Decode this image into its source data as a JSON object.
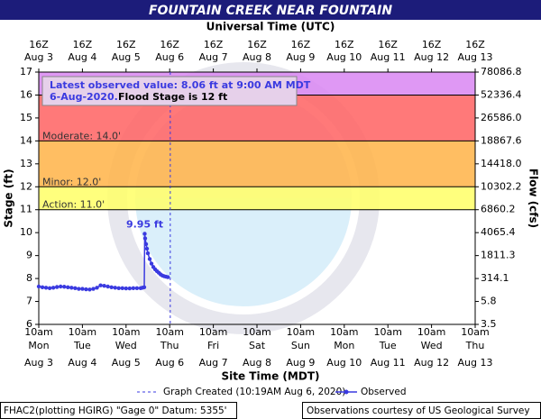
{
  "chart_data": {
    "type": "line",
    "title": "FOUNTAIN CREEK NEAR FOUNTAIN",
    "top_axis_label": "Universal Time (UTC)",
    "x_label": "Site Time (MDT)",
    "y_label": "Stage (ft)",
    "y2_label": "Flow (cfs)",
    "xlim": [
      "2020-08-03 10:00",
      "2020-08-13 10:00"
    ],
    "xticks": [
      {
        "value": "2020-08-03 10:00",
        "utc": "16Z",
        "time": "10am",
        "day": "Mon",
        "date": "Aug 3"
      },
      {
        "value": "2020-08-04 10:00",
        "utc": "16Z",
        "time": "10am",
        "day": "Tue",
        "date": "Aug 4"
      },
      {
        "value": "2020-08-05 10:00",
        "utc": "16Z",
        "time": "10am",
        "day": "Wed",
        "date": "Aug 5"
      },
      {
        "value": "2020-08-06 10:00",
        "utc": "16Z",
        "time": "10am",
        "day": "Thu",
        "date": "Aug 6"
      },
      {
        "value": "2020-08-07 10:00",
        "utc": "16Z",
        "time": "10am",
        "day": "Fri",
        "date": "Aug 7"
      },
      {
        "value": "2020-08-08 10:00",
        "utc": "16Z",
        "time": "10am",
        "day": "Sat",
        "date": "Aug 8"
      },
      {
        "value": "2020-08-09 10:00",
        "utc": "16Z",
        "time": "10am",
        "day": "Sun",
        "date": "Aug 9"
      },
      {
        "value": "2020-08-10 10:00",
        "utc": "16Z",
        "time": "10am",
        "day": "Mon",
        "date": "Aug 10"
      },
      {
        "value": "2020-08-11 10:00",
        "utc": "16Z",
        "time": "10am",
        "day": "Tue",
        "date": "Aug 11"
      },
      {
        "value": "2020-08-12 10:00",
        "utc": "16Z",
        "time": "10am",
        "day": "Wed",
        "date": "Aug 12"
      },
      {
        "value": "2020-08-13 10:00",
        "utc": "16Z",
        "time": "10am",
        "day": "Thu",
        "date": "Aug 13"
      }
    ],
    "ylim": [
      6,
      17
    ],
    "yticks": [
      6,
      7,
      8,
      9,
      10,
      11,
      12,
      13,
      14,
      15,
      16,
      17
    ],
    "y2_tick_labels": [
      "3.5",
      "5.8",
      "314.1",
      "1811.3",
      "4065.4",
      "6860.2",
      "10302.2",
      "14418.0",
      "18867.6",
      "26586.0",
      "52336.4",
      "78086.8"
    ],
    "flood_bands": [
      {
        "from": 11,
        "to": 12,
        "color": "#ffff66",
        "label": "Action: 11.0'"
      },
      {
        "from": 12,
        "to": 14,
        "color": "#ffb347",
        "label": "Minor: 12.0'"
      },
      {
        "from": 14,
        "to": 16,
        "color": "#ff6262",
        "label": "Moderate: 14.0'"
      },
      {
        "from": 16,
        "to": 17,
        "color": "#d986f2"
      }
    ],
    "latest_box": {
      "line1": "Latest observed value: 8.06 ft at 9:00 AM MDT",
      "line2a": "6-Aug-2020.",
      "line2b": "Flood Stage is 12 ft"
    },
    "peak_label": "9.95 ft",
    "graph_created": {
      "x": "2020-08-06 10:19",
      "label": "Graph Created (10:19AM Aug 6, 2020)"
    },
    "series": [
      {
        "name": "Observed",
        "color": "#3a3ae0",
        "x": [
          "2020-08-03 10:00",
          "2020-08-03 12:00",
          "2020-08-03 14:00",
          "2020-08-03 16:00",
          "2020-08-03 18:00",
          "2020-08-03 20:00",
          "2020-08-03 22:00",
          "2020-08-04 00:00",
          "2020-08-04 02:00",
          "2020-08-04 04:00",
          "2020-08-04 06:00",
          "2020-08-04 08:00",
          "2020-08-04 10:00",
          "2020-08-04 12:00",
          "2020-08-04 14:00",
          "2020-08-04 16:00",
          "2020-08-04 18:00",
          "2020-08-04 20:00",
          "2020-08-04 22:00",
          "2020-08-05 00:00",
          "2020-08-05 02:00",
          "2020-08-05 04:00",
          "2020-08-05 06:00",
          "2020-08-05 08:00",
          "2020-08-05 10:00",
          "2020-08-05 12:00",
          "2020-08-05 14:00",
          "2020-08-05 16:00",
          "2020-08-05 18:00",
          "2020-08-05 19:00",
          "2020-08-05 20:00",
          "2020-08-05 20:15",
          "2020-08-05 20:30",
          "2020-08-05 21:00",
          "2020-08-05 21:30",
          "2020-08-05 22:00",
          "2020-08-05 23:00",
          "2020-08-06 00:00",
          "2020-08-06 01:00",
          "2020-08-06 02:00",
          "2020-08-06 03:00",
          "2020-08-06 04:00",
          "2020-08-06 05:00",
          "2020-08-06 06:00",
          "2020-08-06 07:00",
          "2020-08-06 08:00",
          "2020-08-06 09:00"
        ],
        "values": [
          7.65,
          7.62,
          7.6,
          7.58,
          7.6,
          7.63,
          7.65,
          7.64,
          7.62,
          7.6,
          7.58,
          7.55,
          7.55,
          7.53,
          7.52,
          7.55,
          7.6,
          7.7,
          7.68,
          7.65,
          7.62,
          7.6,
          7.58,
          7.58,
          7.57,
          7.57,
          7.58,
          7.58,
          7.58,
          7.6,
          7.62,
          9.95,
          9.75,
          9.5,
          9.3,
          9.1,
          8.85,
          8.65,
          8.5,
          8.4,
          8.32,
          8.25,
          8.18,
          8.13,
          8.1,
          8.08,
          8.06
        ]
      }
    ],
    "footer_left": "FHAC2(plotting HGIRG) \"Gage 0\" Datum: 5355'",
    "footer_right": "Observations courtesy of US Geological Survey"
  }
}
